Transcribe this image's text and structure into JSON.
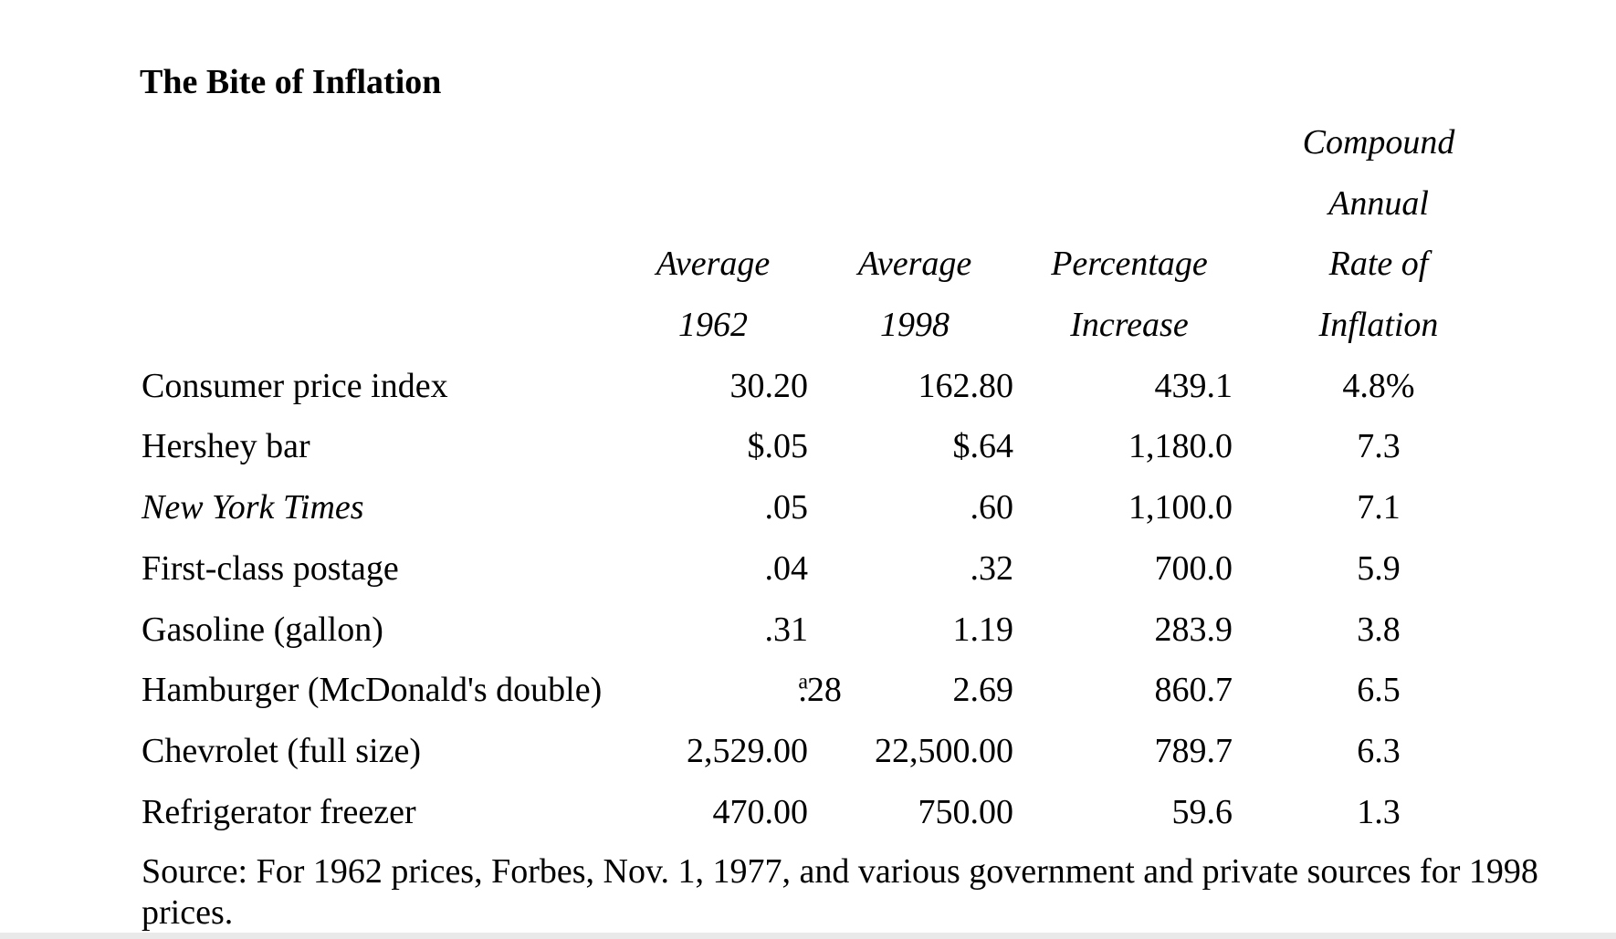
{
  "page": {
    "title": "The Bite of Inflation"
  },
  "colors": {
    "text": "#000000",
    "background": "#ffffff",
    "bottom_bar": "#e9e9e9"
  },
  "table": {
    "headers": {
      "col1": [
        "Average",
        "1962"
      ],
      "col2": [
        "Average",
        "1998"
      ],
      "col3": [
        "Percentage",
        "Increase"
      ],
      "col4": [
        "Compound",
        "Annual",
        "Rate of",
        "Inflation"
      ]
    },
    "rows": [
      {
        "label": "Consumer price index",
        "avg1962": "30.20",
        "avg1998": "162.80",
        "pct_increase": "439.1",
        "inflation_rate": "4.8%"
      },
      {
        "label": "Hershey bar",
        "avg1962": "$.05",
        "avg1998": "$.64",
        "pct_increase": "1,180.0",
        "inflation_rate": "7.3"
      },
      {
        "label": "New York Times",
        "avg1962": ".05",
        "avg1998": ".60",
        "pct_increase": "1,100.0",
        "inflation_rate": "7.1"
      },
      {
        "label": "First-class postage",
        "avg1962": ".04",
        "avg1998": ".32",
        "pct_increase": "700.0",
        "inflation_rate": "5.9"
      },
      {
        "label": "Gasoline (gallon)",
        "avg1962": ".31",
        "avg1998": "1.19",
        "pct_increase": "283.9",
        "inflation_rate": "3.8"
      },
      {
        "label": "Hamburger (McDonald's double)",
        "avg1962": ".28",
        "sup1962": "a",
        "avg1998": "2.69",
        "pct_increase": "860.7",
        "inflation_rate": "6.5"
      },
      {
        "label": "Chevrolet (full size)",
        "avg1962": "2,529.00",
        "avg1998": "22,500.00",
        "pct_increase": "789.7",
        "inflation_rate": "6.3"
      },
      {
        "label": "Refrigerator freezer",
        "avg1962": "470.00",
        "avg1998": "750.00",
        "pct_increase": "59.6",
        "inflation_rate": "1.3"
      }
    ]
  },
  "source_note": {
    "line1": "Source: For 1962 prices, Forbes, Nov. 1, 1977, and various government and private sources for 1998",
    "line2": "prices."
  }
}
